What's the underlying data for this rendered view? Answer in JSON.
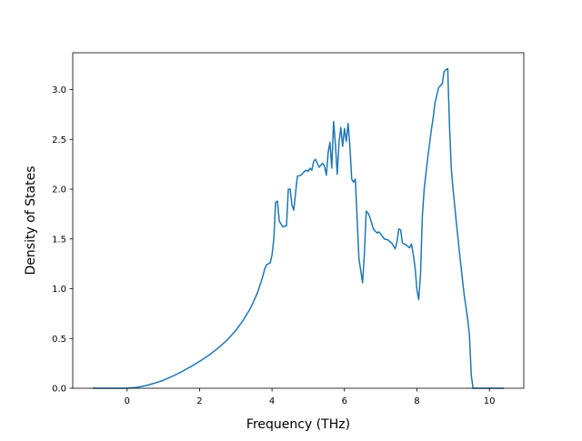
{
  "chart_data": {
    "type": "line",
    "title": "",
    "xlabel": "Frequency (THz)",
    "ylabel": "Density of States",
    "xlim": [
      -1.5,
      10.95
    ],
    "ylim": [
      0.0,
      3.37
    ],
    "xticks": [
      0,
      2,
      4,
      6,
      8,
      10
    ],
    "xtick_labels": [
      "0",
      "2",
      "4",
      "6",
      "8",
      "10"
    ],
    "yticks": [
      0.0,
      0.5,
      1.0,
      1.5,
      2.0,
      2.5,
      3.0
    ],
    "ytick_labels": [
      "0.0",
      "0.5",
      "1.0",
      "1.5",
      "2.0",
      "2.5",
      "3.0"
    ],
    "grid": false,
    "line_color": "#1f77b4",
    "series": [
      {
        "x": [
          -0.95,
          -0.5,
          0.0,
          0.25,
          0.5,
          0.75,
          1.0,
          1.25,
          1.5,
          1.75,
          2.0,
          2.25,
          2.5,
          2.75,
          3.0,
          3.2,
          3.4,
          3.5,
          3.6,
          3.7,
          3.75,
          3.8,
          3.85,
          3.9,
          3.95,
          4.0,
          4.05,
          4.1,
          4.15,
          4.2,
          4.3,
          4.35,
          4.4,
          4.45,
          4.5,
          4.55,
          4.6,
          4.7,
          4.8,
          4.9,
          4.95,
          5.0,
          5.05,
          5.1,
          5.15,
          5.2,
          5.3,
          5.4,
          5.45,
          5.5,
          5.55,
          5.6,
          5.65,
          5.7,
          5.75,
          5.8,
          5.85,
          5.9,
          5.95,
          6.0,
          6.05,
          6.1,
          6.15,
          6.2,
          6.25,
          6.3,
          6.35,
          6.4,
          6.5,
          6.55,
          6.6,
          6.65,
          6.7,
          6.75,
          6.8,
          6.9,
          6.95,
          7.0,
          7.1,
          7.2,
          7.3,
          7.35,
          7.4,
          7.45,
          7.5,
          7.55,
          7.6,
          7.7,
          7.8,
          7.85,
          7.9,
          7.95,
          8.0,
          8.05,
          8.1,
          8.15,
          8.2,
          8.3,
          8.4,
          8.45,
          8.5,
          8.6,
          8.7,
          8.75,
          8.8,
          8.85,
          8.9,
          8.95,
          9.0,
          9.1,
          9.2,
          9.3,
          9.4,
          9.45,
          9.5,
          9.55,
          9.7,
          10.4
        ],
        "y": [
          0.0,
          0.0,
          0.0,
          0.008,
          0.025,
          0.05,
          0.08,
          0.12,
          0.165,
          0.215,
          0.27,
          0.33,
          0.4,
          0.48,
          0.58,
          0.68,
          0.8,
          0.88,
          0.96,
          1.07,
          1.13,
          1.2,
          1.24,
          1.25,
          1.26,
          1.34,
          1.5,
          1.87,
          1.88,
          1.68,
          1.62,
          1.63,
          1.63,
          2.0,
          2.0,
          1.84,
          1.79,
          2.13,
          2.14,
          2.18,
          2.19,
          2.18,
          2.21,
          2.19,
          2.28,
          2.3,
          2.22,
          2.26,
          2.23,
          2.14,
          2.37,
          2.47,
          2.21,
          2.68,
          2.45,
          2.15,
          2.47,
          2.62,
          2.43,
          2.61,
          2.48,
          2.66,
          2.43,
          2.1,
          2.07,
          2.1,
          1.7,
          1.3,
          1.06,
          1.35,
          1.78,
          1.76,
          1.72,
          1.66,
          1.6,
          1.56,
          1.57,
          1.55,
          1.5,
          1.49,
          1.46,
          1.43,
          1.4,
          1.47,
          1.6,
          1.59,
          1.46,
          1.44,
          1.41,
          1.45,
          1.34,
          1.21,
          0.99,
          0.89,
          1.15,
          1.73,
          2.0,
          2.32,
          2.6,
          2.72,
          2.87,
          3.02,
          3.06,
          3.18,
          3.2,
          3.21,
          2.63,
          2.2,
          1.99,
          1.62,
          1.28,
          0.95,
          0.7,
          0.53,
          0.13,
          0.0,
          0.0,
          0.0
        ]
      }
    ]
  }
}
